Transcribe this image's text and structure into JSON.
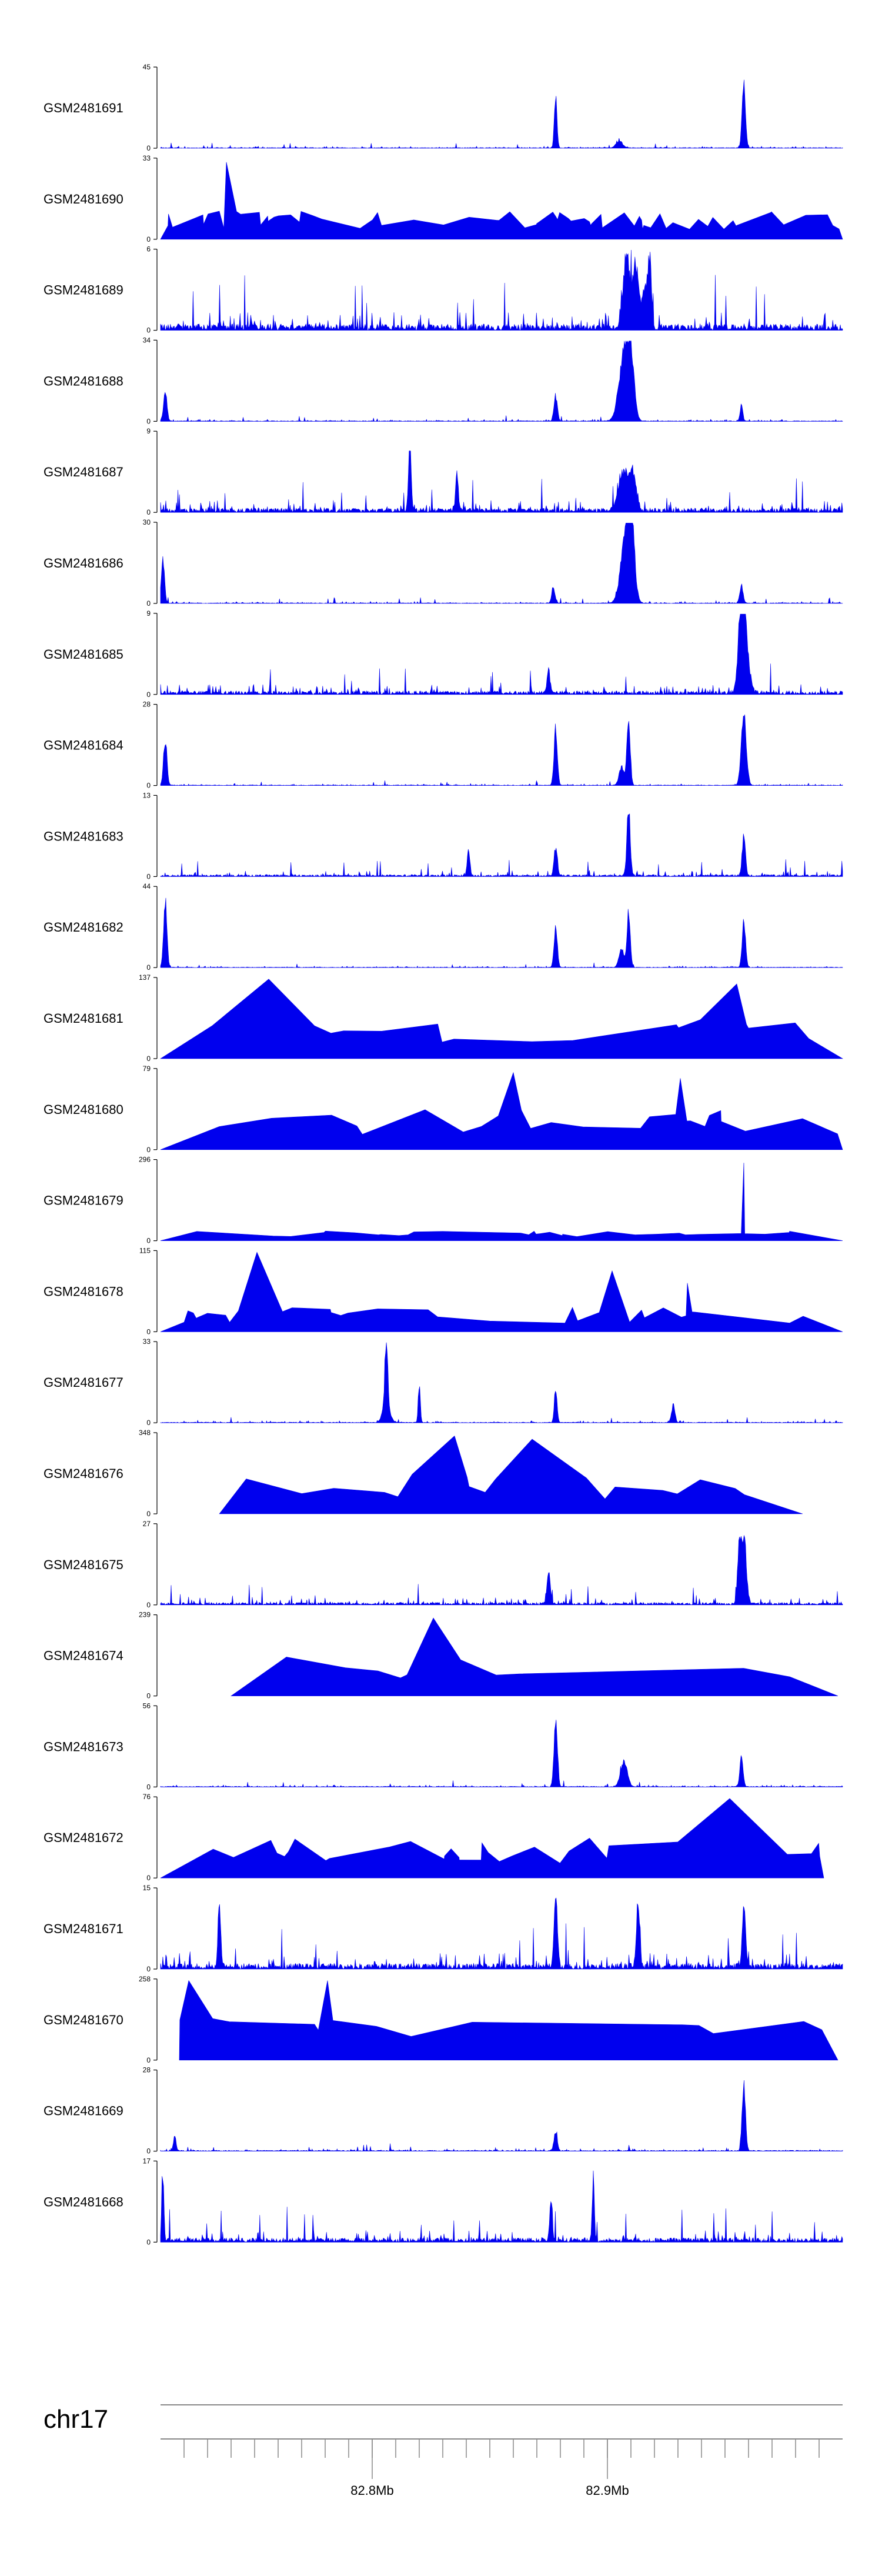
{
  "chart_data": {
    "type": "area",
    "fill_color": "#0000ee",
    "axis_color": "#000000",
    "genome_axis_color": "#888888",
    "x_range_mb": [
      82.71,
      83.0
    ],
    "tracks": [
      {
        "name": "GSM2481691",
        "ymax": "45",
        "ymin": "0",
        "style": "signal",
        "seed": 11,
        "base": 0.05,
        "peaks": [
          [
            82.878,
            0.75,
            0.0008
          ],
          [
            82.958,
            0.98,
            0.001
          ],
          [
            82.905,
            0.1,
            0.002
          ]
        ]
      },
      {
        "name": "GSM2481690",
        "ymax": "33",
        "ymin": "0",
        "style": "sparse",
        "seed": 23,
        "spikes": 72,
        "base": 0.35,
        "peaks": [
          [
            82.738,
            0.95,
            0.0006
          ]
        ]
      },
      {
        "name": "GSM2481689",
        "ymax": "6",
        "ymin": "0",
        "style": "signal",
        "seed": 37,
        "base": 0.45,
        "peaks": [
          [
            82.908,
            0.98,
            0.002
          ],
          [
            82.912,
            0.8,
            0.002
          ],
          [
            82.916,
            0.6,
            0.0015
          ],
          [
            82.918,
            0.9,
            0.001
          ]
        ]
      },
      {
        "name": "GSM2481688",
        "ymax": "34",
        "ymin": "0",
        "style": "signal",
        "seed": 41,
        "base": 0.05,
        "peaks": [
          [
            82.712,
            0.45,
            0.001
          ],
          [
            82.878,
            0.35,
            0.001
          ],
          [
            82.907,
            0.95,
            0.003
          ],
          [
            82.91,
            0.8,
            0.002
          ],
          [
            82.957,
            0.22,
            0.0008
          ]
        ]
      },
      {
        "name": "GSM2481687",
        "ymax": "9",
        "ymin": "0",
        "style": "signal",
        "seed": 53,
        "base": 0.3,
        "peaks": [
          [
            82.816,
            0.9,
            0.0008
          ],
          [
            82.907,
            0.55,
            0.003
          ],
          [
            82.911,
            0.45,
            0.002
          ],
          [
            82.836,
            0.55,
            0.0008
          ]
        ]
      },
      {
        "name": "GSM2481686",
        "ymax": "30",
        "ymin": "0",
        "style": "signal",
        "seed": 67,
        "base": 0.05,
        "peaks": [
          [
            82.711,
            0.6,
            0.001
          ],
          [
            82.908,
            0.98,
            0.003
          ],
          [
            82.91,
            0.9,
            0.002
          ],
          [
            82.877,
            0.2,
            0.001
          ],
          [
            82.957,
            0.25,
            0.001
          ]
        ]
      },
      {
        "name": "GSM2481685",
        "ymax": "9",
        "ymin": "0",
        "style": "signal",
        "seed": 79,
        "base": 0.25,
        "peaks": [
          [
            82.958,
            0.95,
            0.0025
          ],
          [
            82.957,
            0.8,
            0.0015
          ],
          [
            82.875,
            0.3,
            0.001
          ]
        ]
      },
      {
        "name": "GSM2481684",
        "ymax": "28",
        "ymin": "0",
        "style": "signal",
        "seed": 83,
        "base": 0.04,
        "peaks": [
          [
            82.712,
            0.65,
            0.001
          ],
          [
            82.878,
            0.8,
            0.001
          ],
          [
            82.906,
            0.25,
            0.0015
          ],
          [
            82.909,
            0.95,
            0.001
          ],
          [
            82.958,
            0.98,
            0.0015
          ]
        ]
      },
      {
        "name": "GSM2481683",
        "ymax": "13",
        "ymin": "0",
        "style": "signal",
        "seed": 97,
        "base": 0.14,
        "peaks": [
          [
            82.909,
            0.98,
            0.001
          ],
          [
            82.878,
            0.4,
            0.001
          ],
          [
            82.958,
            0.55,
            0.001
          ],
          [
            82.841,
            0.35,
            0.0008
          ]
        ]
      },
      {
        "name": "GSM2481682",
        "ymax": "44",
        "ymin": "0",
        "style": "signal",
        "seed": 101,
        "base": 0.04,
        "peaks": [
          [
            82.712,
            0.95,
            0.001
          ],
          [
            82.878,
            0.55,
            0.001
          ],
          [
            82.906,
            0.25,
            0.0015
          ],
          [
            82.909,
            0.75,
            0.001
          ],
          [
            82.958,
            0.65,
            0.001
          ]
        ]
      },
      {
        "name": "GSM2481681",
        "ymax": "137",
        "ymin": "0",
        "style": "sparse",
        "seed": 109,
        "spikes": 17,
        "base": 0.5,
        "peaks": [
          [
            82.756,
            0.98,
            0.0006
          ],
          [
            82.955,
            0.92,
            0.0006
          ]
        ]
      },
      {
        "name": "GSM2481680",
        "ymax": "79",
        "ymin": "0",
        "style": "sparse",
        "seed": 113,
        "spikes": 25,
        "base": 0.5,
        "peaks": [
          [
            82.86,
            0.95,
            0.0006
          ],
          [
            82.931,
            0.88,
            0.0006
          ]
        ]
      },
      {
        "name": "GSM2481679",
        "ymax": "296",
        "ymin": "0",
        "style": "sparse",
        "seed": 127,
        "spikes": 32,
        "base": 0.12,
        "peaks": [
          [
            82.958,
            0.96,
            0.0006
          ]
        ]
      },
      {
        "name": "GSM2481678",
        "ymax": "115",
        "ymin": "0",
        "style": "sparse",
        "seed": 131,
        "spikes": 34,
        "base": 0.3,
        "peaks": [
          [
            82.751,
            0.98,
            0.0006
          ],
          [
            82.902,
            0.75,
            0.0006
          ],
          [
            82.934,
            0.6,
            0.0006
          ]
        ]
      },
      {
        "name": "GSM2481677",
        "ymax": "33",
        "ymin": "0",
        "style": "signal",
        "seed": 137,
        "base": 0.05,
        "peaks": [
          [
            82.806,
            0.96,
            0.0008
          ],
          [
            82.806,
            0.3,
            0.002
          ],
          [
            82.82,
            0.55,
            0.0006
          ],
          [
            82.878,
            0.5,
            0.0008
          ],
          [
            82.928,
            0.25,
            0.001
          ]
        ]
      },
      {
        "name": "GSM2481676",
        "ymax": "348",
        "ymin": "0",
        "style": "sparse",
        "seed": 139,
        "spikes": 18,
        "base": 0.5,
        "peaks": [
          [
            82.835,
            0.96,
            0.0006
          ],
          [
            82.868,
            0.92,
            0.0006
          ]
        ],
        "start": 82.735,
        "end": 82.983
      },
      {
        "name": "GSM2481675",
        "ymax": "27",
        "ymin": "0",
        "style": "signal",
        "seed": 149,
        "base": 0.18,
        "peaks": [
          [
            82.958,
            0.98,
            0.0015
          ],
          [
            82.956,
            0.75,
            0.001
          ],
          [
            82.875,
            0.45,
            0.001
          ]
        ]
      },
      {
        "name": "GSM2481674",
        "ymax": "239",
        "ymin": "0",
        "style": "sparse",
        "seed": 151,
        "spikes": 10,
        "base": 0.5,
        "peaks": [
          [
            82.826,
            0.96,
            0.0006
          ]
        ],
        "start": 82.74,
        "end": 82.998
      },
      {
        "name": "GSM2481673",
        "ymax": "56",
        "ymin": "0",
        "style": "signal",
        "seed": 157,
        "base": 0.05,
        "peaks": [
          [
            82.878,
            0.98,
            0.001
          ],
          [
            82.907,
            0.35,
            0.002
          ],
          [
            82.957,
            0.4,
            0.001
          ]
        ]
      },
      {
        "name": "GSM2481672",
        "ymax": "76",
        "ymin": "0",
        "style": "sparse",
        "seed": 163,
        "spikes": 32,
        "base": 0.5,
        "peaks": [
          [
            82.952,
            0.98,
            0.0006
          ]
        ],
        "end": 82.992
      },
      {
        "name": "GSM2481671",
        "ymax": "15",
        "ymin": "0",
        "style": "signal",
        "seed": 167,
        "base": 0.4,
        "peaks": [
          [
            82.735,
            0.9,
            0.0008
          ],
          [
            82.878,
            0.95,
            0.001
          ],
          [
            82.913,
            0.85,
            0.001
          ],
          [
            82.958,
            0.9,
            0.001
          ]
        ]
      },
      {
        "name": "GSM2481670",
        "ymax": "258",
        "ymin": "0",
        "style": "sparse",
        "seed": 173,
        "spikes": 14,
        "base": 0.55,
        "peaks": [
          [
            82.722,
            0.98,
            0.0006
          ],
          [
            82.781,
            0.98,
            0.0006
          ]
        ],
        "start": 82.718,
        "end": 82.998
      },
      {
        "name": "GSM2481669",
        "ymax": "28",
        "ymin": "0",
        "style": "signal",
        "seed": 179,
        "base": 0.06,
        "peaks": [
          [
            82.958,
            0.95,
            0.001
          ],
          [
            82.878,
            0.25,
            0.001
          ],
          [
            82.716,
            0.2,
            0.0008
          ]
        ]
      },
      {
        "name": "GSM2481668",
        "ymax": "17",
        "ymin": "0",
        "style": "signal",
        "seed": 181,
        "base": 0.3,
        "peaks": [
          [
            82.711,
            0.95,
            0.0006
          ],
          [
            82.894,
            0.98,
            0.0006
          ],
          [
            82.876,
            0.55,
            0.0008
          ]
        ]
      }
    ],
    "genome_axis": {
      "chrom": "chr17",
      "minor_ticks_mb": [
        82.72,
        82.73,
        82.74,
        82.75,
        82.76,
        82.77,
        82.78,
        82.79,
        82.8,
        82.81,
        82.82,
        82.83,
        82.84,
        82.85,
        82.86,
        82.87,
        82.88,
        82.89,
        82.9,
        82.91,
        82.92,
        82.93,
        82.94,
        82.95,
        82.96,
        82.97,
        82.98,
        82.99
      ],
      "major_ticks": [
        {
          "mb": 82.8,
          "label": "82.8Mb"
        },
        {
          "mb": 82.9,
          "label": "82.9Mb"
        }
      ]
    }
  }
}
